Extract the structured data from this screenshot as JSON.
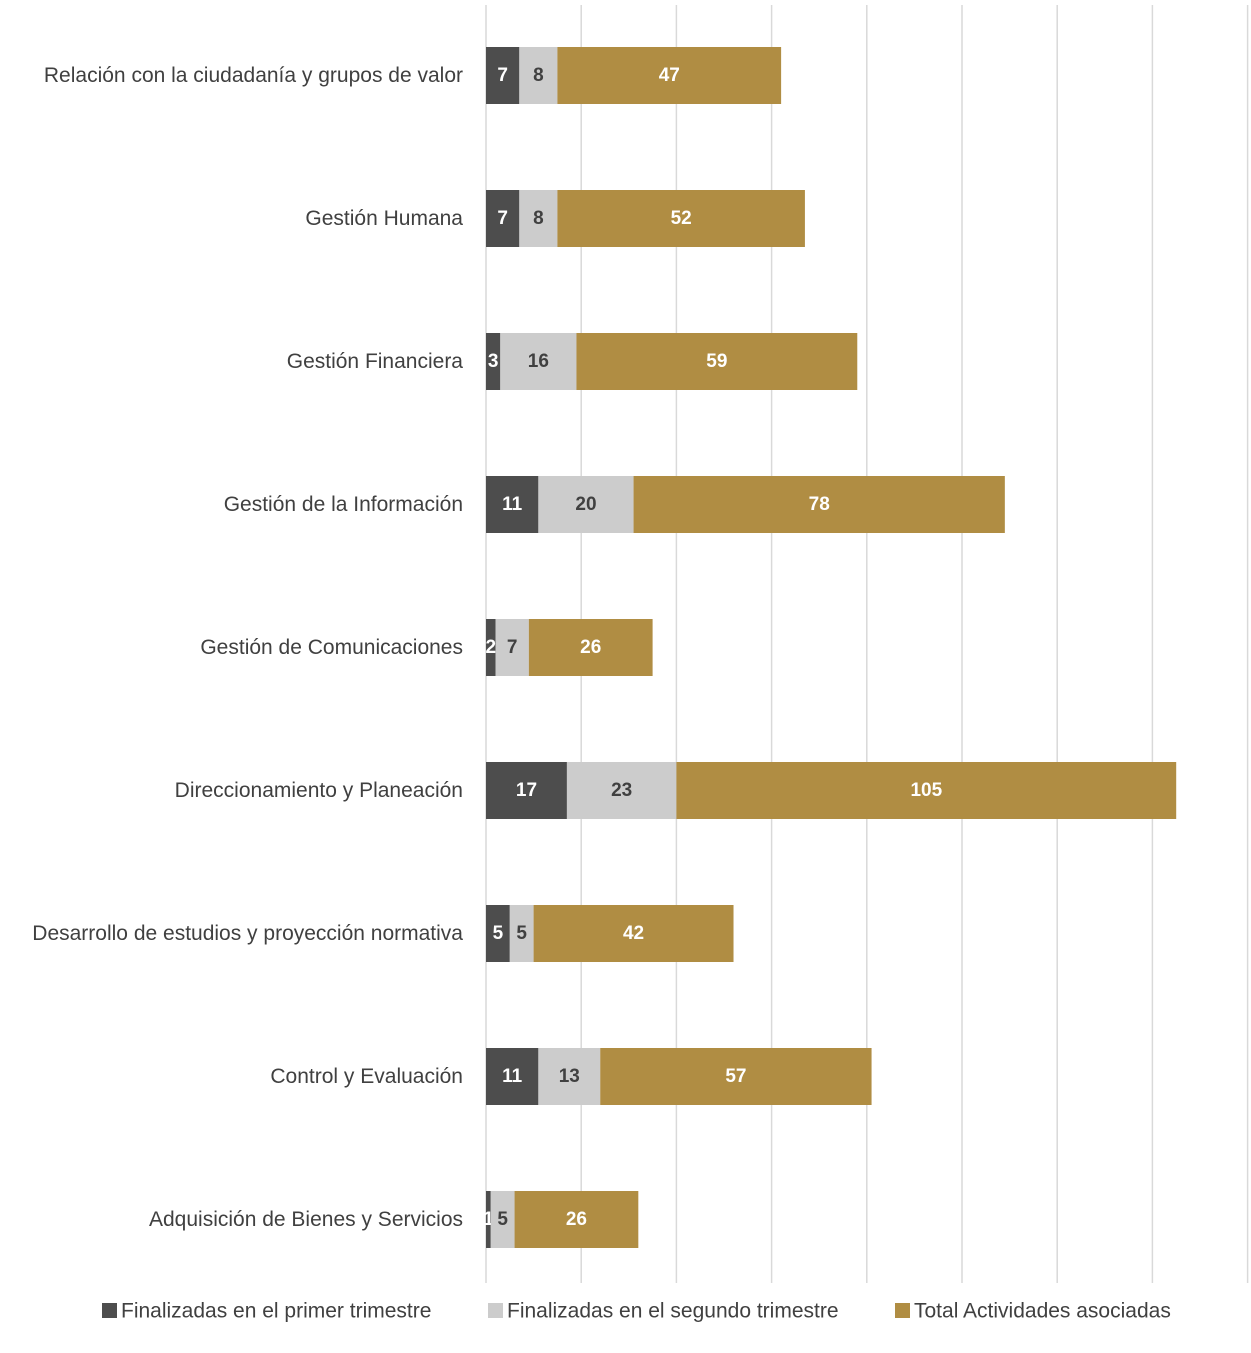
{
  "chart_data": {
    "type": "bar",
    "orientation": "horizontal",
    "stacked": true,
    "title": "",
    "xlabel": "",
    "ylabel": "",
    "categories": [
      "Relación con la ciudadanía y grupos de valor",
      "Gestión Humana",
      "Gestión Financiera",
      "Gestión de la Información",
      "Gestión de Comunicaciones",
      "Direccionamiento y Planeación",
      "Desarrollo de estudios y proyección normativa",
      "Control y Evaluación",
      "Adquisición de Bienes y Servicios"
    ],
    "series": [
      {
        "name": "Finalizadas en el primer trimestre",
        "color": "#4d4d4d",
        "label_color": "#ffffff",
        "values": [
          7,
          7,
          3,
          11,
          2,
          17,
          5,
          11,
          1
        ]
      },
      {
        "name": "Finalizadas en el segundo trimestre",
        "color": "#cccccc",
        "label_color": "#404040",
        "values": [
          8,
          8,
          16,
          20,
          7,
          23,
          5,
          13,
          5
        ]
      },
      {
        "name": "Total Actividades asociadas",
        "color": "#b08d43",
        "label_color": "#ffffff",
        "values": [
          47,
          52,
          59,
          78,
          26,
          105,
          42,
          57,
          26
        ]
      }
    ],
    "xlim": [
      0,
      160
    ],
    "x_grid_step": 20,
    "grid": "vertical",
    "legend": "bottom"
  }
}
